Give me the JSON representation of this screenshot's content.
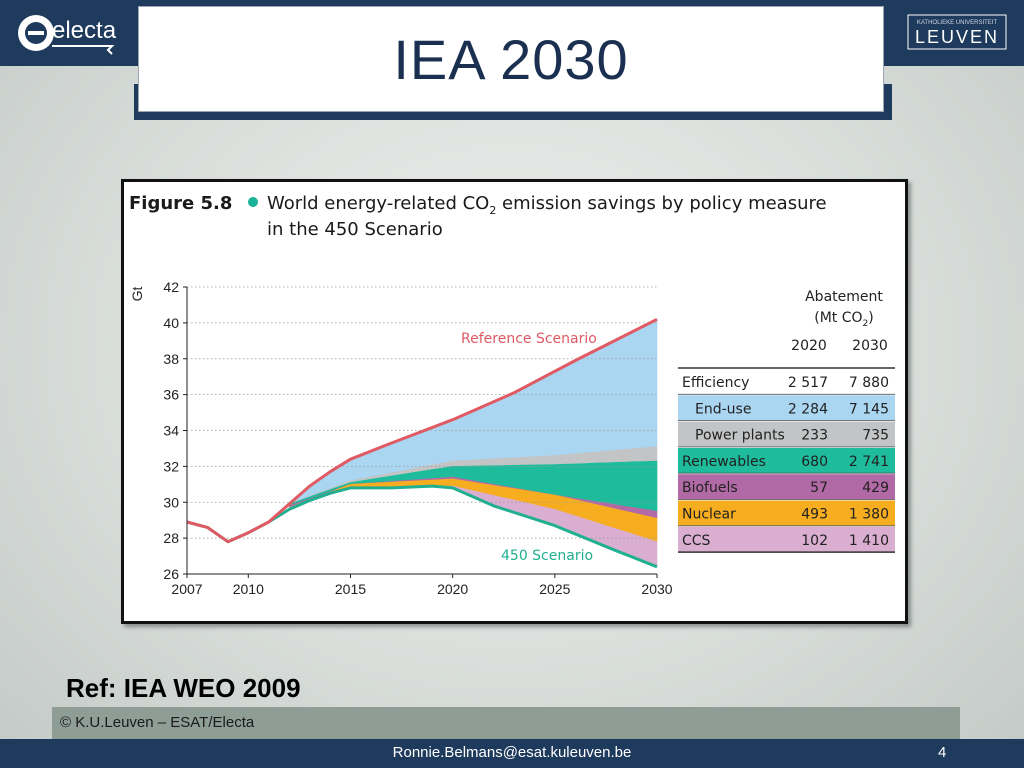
{
  "slide": {
    "title": "IEA 2030",
    "logo_left_text": "electa",
    "logo_right_small": "KATHOLIEKE UNIVERSITEIT",
    "logo_right_big": "LEUVEN",
    "reference": "Ref: IEA WEO 2009",
    "copyright": "© K.U.Leuven – ESAT/Electa",
    "email": "Ronnie.Belmans@esat.kuleuven.be",
    "page_number": "4"
  },
  "figure": {
    "label": "Figure 5.8",
    "title_line1_pre": "World energy-related CO",
    "title_line1_sub": "2",
    "title_line1_post": " emission savings by policy measure",
    "title_line2": "in the 450 Scenario",
    "ylabel": "Gt",
    "annotation_reference": "Reference Scenario",
    "annotation_450": "450 Scenario"
  },
  "table": {
    "header_line1": "Abatement",
    "header_line2_pre": "(Mt CO",
    "header_line2_sub": "2",
    "header_line2_post": ")",
    "columns": [
      "2020",
      "2030"
    ],
    "rows": [
      {
        "label": "Efficiency",
        "v2020": "2 517",
        "v2030": "7 880",
        "color": "#ffffff",
        "indent": false
      },
      {
        "label": "End-use",
        "v2020": "2 284",
        "v2030": "7 145",
        "color": "#abd6f2",
        "indent": true
      },
      {
        "label": "Power plants",
        "v2020": "233",
        "v2030": "735",
        "color": "#c2c4c6",
        "indent": true
      },
      {
        "label": "Renewables",
        "v2020": "680",
        "v2030": "2 741",
        "color": "#1ebc9c",
        "indent": false
      },
      {
        "label": "Biofuels",
        "v2020": "57",
        "v2030": "429",
        "color": "#b26aa6",
        "indent": false
      },
      {
        "label": "Nuclear",
        "v2020": "493",
        "v2030": "1 380",
        "color": "#f7ad20",
        "indent": false
      },
      {
        "label": "CCS",
        "v2020": "102",
        "v2030": "1 410",
        "color": "#d9aed0",
        "indent": false
      }
    ]
  },
  "chart_data": {
    "type": "area",
    "ylabel": "Gt",
    "xlim": [
      2007,
      2030
    ],
    "ylim": [
      26,
      42
    ],
    "xticks": [
      2007,
      2010,
      2015,
      2020,
      2025,
      2030
    ],
    "yticks": [
      26,
      28,
      30,
      32,
      34,
      36,
      38,
      40,
      42
    ],
    "grid": "horizontal-dotted",
    "reference_scenario": {
      "name": "Reference Scenario",
      "x": [
        2007,
        2008,
        2009,
        2010,
        2011,
        2012,
        2013,
        2014,
        2015,
        2017,
        2020,
        2023,
        2026,
        2030
      ],
      "y": [
        28.9,
        28.6,
        27.8,
        28.3,
        28.9,
        29.9,
        30.9,
        31.7,
        32.4,
        33.3,
        34.6,
        36.1,
        37.9,
        40.2
      ]
    },
    "scenario_450": {
      "name": "450 Scenario",
      "x": [
        2007,
        2008,
        2009,
        2010,
        2011,
        2012,
        2013,
        2014,
        2015,
        2017,
        2019,
        2020,
        2022,
        2025,
        2028,
        2030
      ],
      "y": [
        28.9,
        28.6,
        27.8,
        28.3,
        28.9,
        29.6,
        30.1,
        30.5,
        30.8,
        30.8,
        30.9,
        30.8,
        29.8,
        28.7,
        27.3,
        26.4
      ]
    },
    "boundaries": {
      "x": [
        2012,
        2015,
        2020,
        2025,
        2030
      ],
      "after_end_use": [
        29.9,
        31.2,
        32.3,
        32.6,
        33.1
      ],
      "after_power_plants": [
        29.9,
        31.1,
        32.0,
        32.1,
        32.3
      ],
      "after_renewables": [
        29.8,
        31.0,
        31.4,
        30.4,
        29.5
      ],
      "after_biofuels": [
        29.7,
        31.0,
        31.3,
        30.4,
        29.1
      ],
      "after_nuclear": [
        29.7,
        30.8,
        30.9,
        29.6,
        27.8
      ]
    },
    "series_colors": {
      "end_use": "#abd6f2",
      "power_plants": "#c2c4c6",
      "renewables": "#1ebc9c",
      "biofuels": "#b26aa6",
      "nuclear": "#f7ad20",
      "ccs": "#d9aed0",
      "reference_line": "#e05a64",
      "scenario_450_line": "#20b090"
    }
  }
}
